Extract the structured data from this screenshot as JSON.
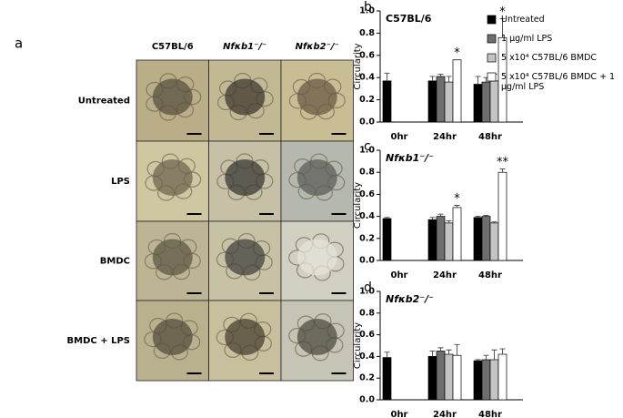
{
  "panel_a": {
    "letter": "a",
    "columns": [
      "C57BL/6",
      "Nfκb1⁻/⁻",
      "Nfκb2⁻/⁻"
    ],
    "rows": [
      "Untreated",
      "LPS",
      "BMDC",
      "BMDC + LPS"
    ]
  },
  "chart_data": [
    {
      "type": "bar",
      "letter": "b",
      "title": "C57BL/6",
      "ylabel": "Circularity",
      "categories": [
        "0hr",
        "24hr",
        "48hr"
      ],
      "ylim": [
        0,
        1
      ],
      "yticks": [
        {
          "value": 0,
          "label": "0.0"
        },
        {
          "value": 0.2,
          "label": "0.2"
        },
        {
          "value": 0.4,
          "label": "0.4"
        },
        {
          "value": 0.6,
          "label": "0.6"
        },
        {
          "value": 0.8,
          "label": "0.8"
        },
        {
          "value": 1,
          "label": "1.0"
        }
      ],
      "series": [
        {
          "name": "Untreated",
          "color": "#000000",
          "values": [
            0.37,
            0.37,
            0.34
          ],
          "errors": [
            0.07,
            0.04,
            0.07
          ]
        },
        {
          "name": "1 µg/ml LPS",
          "color": "#6e6e6e",
          "values": [
            null,
            0.41,
            0.36
          ],
          "errors": [
            null,
            0.02,
            0.04
          ]
        },
        {
          "name": "5 x10⁴ C57BL/6 BMDC",
          "color": "#c4c4c4",
          "values": [
            null,
            0.36,
            0.37
          ],
          "errors": [
            null,
            0.05,
            0.06
          ]
        },
        {
          "name": "5 x10⁴ C57BL/6 BMDC + 1 µg/ml LPS",
          "color": "#ffffff",
          "values": [
            null,
            0.56,
            0.76
          ],
          "errors": [
            null,
            0.0,
            0.17
          ],
          "significance": [
            null,
            "*",
            "*"
          ]
        }
      ]
    },
    {
      "type": "bar",
      "letter": "c",
      "title": "Nfκb1⁻/⁻",
      "ylabel": "Circularity",
      "categories": [
        "0hr",
        "24hr",
        "48hr"
      ],
      "ylim": [
        0,
        1
      ],
      "yticks": [
        {
          "value": 0,
          "label": "0.0"
        },
        {
          "value": 0.2,
          "label": "0.2"
        },
        {
          "value": 0.4,
          "label": "0.4"
        },
        {
          "value": 0.6,
          "label": "0.6"
        },
        {
          "value": 0.8,
          "label": "0.8"
        },
        {
          "value": 1,
          "label": "1.0"
        }
      ],
      "series": [
        {
          "color": "#000000",
          "values": [
            0.38,
            0.37,
            0.39
          ],
          "errors": [
            0.01,
            0.02,
            0.01
          ]
        },
        {
          "color": "#6e6e6e",
          "values": [
            null,
            0.4,
            0.4
          ],
          "errors": [
            null,
            0.02,
            0.01
          ]
        },
        {
          "color": "#c4c4c4",
          "values": [
            null,
            0.34,
            0.34
          ],
          "errors": [
            null,
            0.02,
            0.01
          ]
        },
        {
          "color": "#ffffff",
          "values": [
            null,
            0.48,
            0.8
          ],
          "errors": [
            null,
            0.02,
            0.03
          ],
          "significance": [
            null,
            "*",
            "**"
          ]
        }
      ]
    },
    {
      "type": "bar",
      "letter": "d",
      "title": "Nfκb2⁻/⁻",
      "ylabel": "Circularity",
      "categories": [
        "0hr",
        "24hr",
        "48hr"
      ],
      "ylim": [
        0,
        1
      ],
      "yticks": [
        {
          "value": 0,
          "label": "0.0"
        },
        {
          "value": 0.2,
          "label": "0.2"
        },
        {
          "value": 0.4,
          "label": "0.4"
        },
        {
          "value": 0.6,
          "label": "0.6"
        },
        {
          "value": 0.8,
          "label": "0.8"
        },
        {
          "value": 1,
          "label": "1.0"
        }
      ],
      "series": [
        {
          "color": "#000000",
          "values": [
            0.39,
            0.4,
            0.36
          ],
          "errors": [
            0.05,
            0.05,
            0.01
          ]
        },
        {
          "color": "#6e6e6e",
          "values": [
            null,
            0.45,
            0.37
          ],
          "errors": [
            null,
            0.03,
            0.04
          ]
        },
        {
          "color": "#c4c4c4",
          "values": [
            null,
            0.42,
            0.37
          ],
          "errors": [
            null,
            0.04,
            0.09
          ]
        },
        {
          "color": "#ffffff",
          "values": [
            null,
            0.41,
            0.42
          ],
          "errors": [
            null,
            0.1,
            0.05
          ]
        }
      ]
    }
  ]
}
